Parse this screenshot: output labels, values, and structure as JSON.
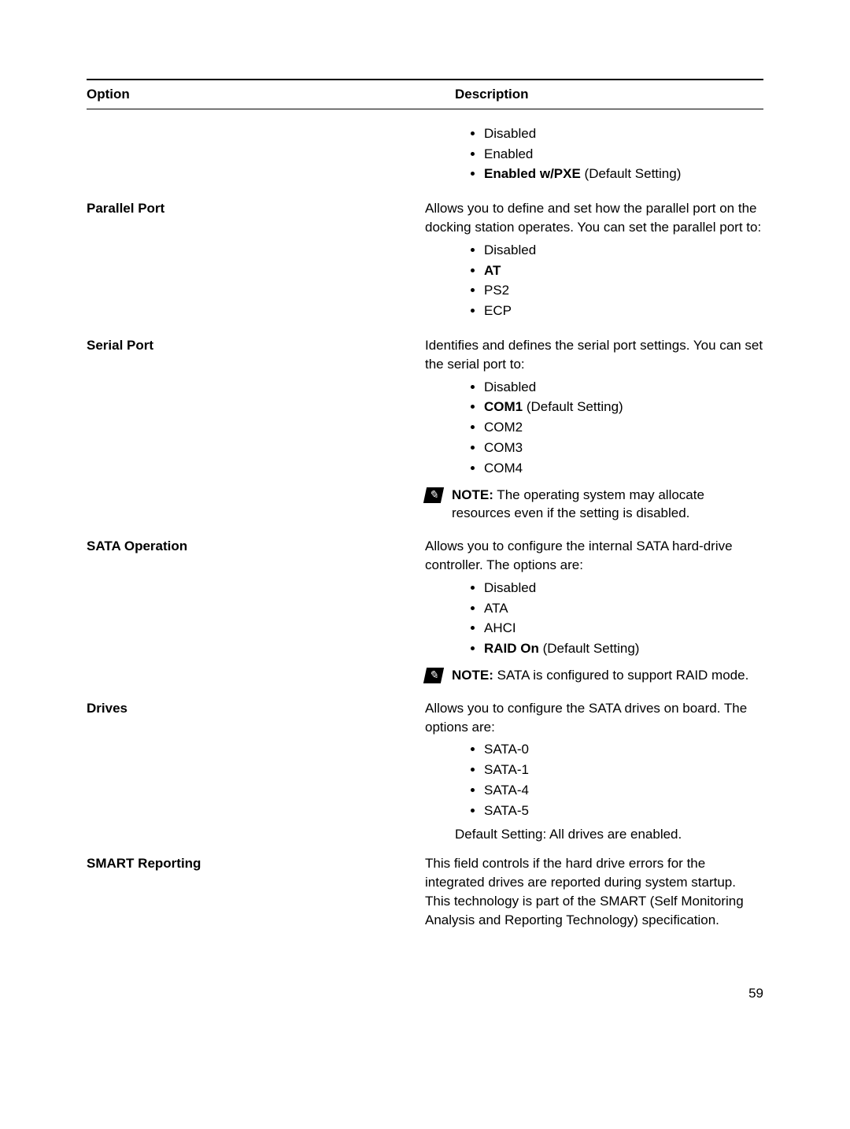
{
  "header": {
    "option": "Option",
    "description": "Description"
  },
  "rows": [
    {
      "left": "",
      "bullets": [
        {
          "text": "Disabled",
          "bold": false
        },
        {
          "text": "Enabled",
          "bold": false
        },
        {
          "prefix": "Enabled w/PXE",
          "suffix": " (Default Setting)",
          "bold": true
        }
      ]
    },
    {
      "left": "Parallel Port",
      "intro": "Allows you to define and set how the parallel port on the docking station operates. You can set the parallel port to:",
      "bullets": [
        {
          "text": "Disabled",
          "bold": false
        },
        {
          "text": "AT",
          "bold": true
        },
        {
          "text": "PS2",
          "bold": false
        },
        {
          "text": "ECP",
          "bold": false
        }
      ]
    },
    {
      "left": "Serial Port",
      "intro": "Identifies and defines the serial port settings. You can set the serial port to:",
      "bullets": [
        {
          "text": "Disabled",
          "bold": false
        },
        {
          "prefix": "COM1",
          "suffix": " (Default Setting)",
          "bold": true
        },
        {
          "text": "COM2",
          "bold": false
        },
        {
          "text": "COM3",
          "bold": false
        },
        {
          "text": "COM4",
          "bold": false
        }
      ],
      "note": {
        "label": "NOTE:",
        "text": " The operating system may allocate resources even if the setting is disabled."
      }
    },
    {
      "left": "SATA Operation",
      "intro": "Allows you to configure the internal SATA hard-drive controller. The options are:",
      "bullets": [
        {
          "text": "Disabled",
          "bold": false
        },
        {
          "text": "ATA",
          "bold": false
        },
        {
          "text": "AHCI",
          "bold": false
        },
        {
          "prefix": "RAID On",
          "suffix": " (Default Setting)",
          "bold": true
        }
      ],
      "note": {
        "label": "NOTE:",
        "text": " SATA is configured to support RAID mode."
      }
    },
    {
      "left": "Drives",
      "intro": "Allows you to configure the SATA drives on board. The options are:",
      "bullets": [
        {
          "text": "SATA-0",
          "bold": false
        },
        {
          "text": "SATA-1",
          "bold": false
        },
        {
          "text": "SATA-4",
          "bold": false
        },
        {
          "text": "SATA-5",
          "bold": false
        }
      ],
      "outro": "Default Setting: All drives are enabled."
    },
    {
      "left": "SMART Reporting",
      "intro": "This field controls if the hard drive errors for the integrated drives are reported during system startup. This technology is part of the SMART (Self Monitoring Analysis and Reporting Technology) specification."
    }
  ],
  "page": "59"
}
